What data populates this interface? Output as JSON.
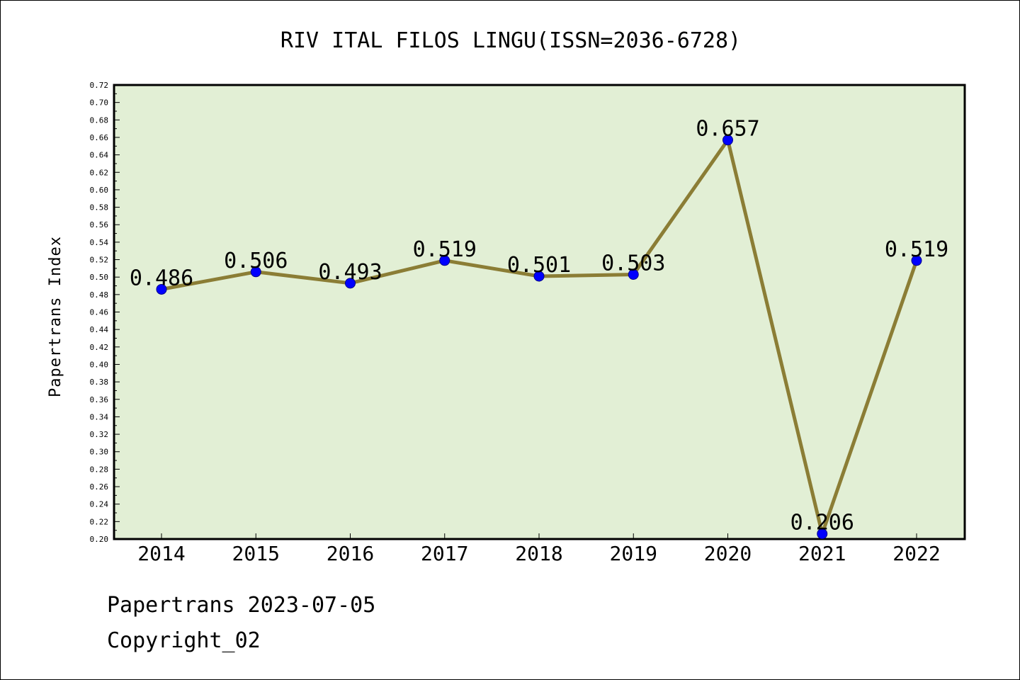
{
  "footer": {
    "line1": "Papertrans 2023-07-05",
    "line2": "Copyright_02"
  },
  "colors": {
    "plot_background": "#e2efd5",
    "line": "#8b7d35",
    "marker": "#0000ff"
  },
  "chart_data": {
    "type": "line",
    "title": "RIV ITAL FILOS LINGU(ISSN=2036-6728)",
    "xlabel": "",
    "ylabel": "Papertrans Index",
    "categories": [
      "2014",
      "2015",
      "2016",
      "2017",
      "2018",
      "2019",
      "2020",
      "2021",
      "2022"
    ],
    "series": [
      {
        "values": [
          0.486,
          0.506,
          0.493,
          0.519,
          0.501,
          0.503,
          0.657,
          0.206,
          0.519
        ],
        "labels": [
          "0.486",
          "0.506",
          "0.493",
          "0.519",
          "0.501",
          "0.503",
          "0.657",
          "0.206",
          "0.519"
        ]
      }
    ],
    "ylim": [
      0.2,
      0.72
    ],
    "yticks": [
      "0.20",
      "0.22",
      "0.24",
      "0.26",
      "0.28",
      "0.30",
      "0.32",
      "0.34",
      "0.36",
      "0.38",
      "0.40",
      "0.42",
      "0.44",
      "0.46",
      "0.48",
      "0.50",
      "0.52",
      "0.54",
      "0.56",
      "0.58",
      "0.60",
      "0.62",
      "0.64",
      "0.66",
      "0.68",
      "0.70",
      "0.72"
    ],
    "grid": false,
    "legend": "none"
  }
}
